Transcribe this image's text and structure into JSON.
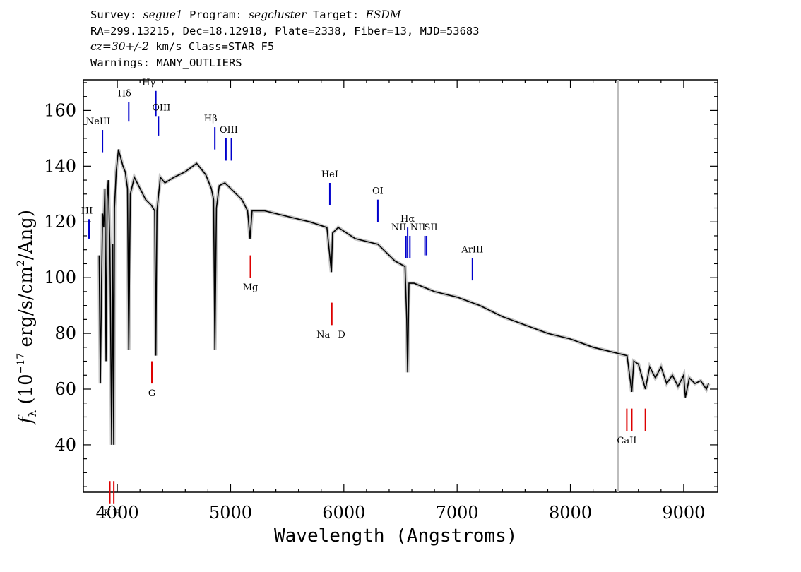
{
  "header": {
    "line1": {
      "survey_label": "Survey: ",
      "survey": "segue1",
      "program_label": " Program: ",
      "program": "segcluster",
      "target_label": " Target: ",
      "target": "ESDM"
    },
    "line2": "RA=299.13215, Dec=18.12918, Plate=2338, Fiber=13, MJD=53683",
    "line3": {
      "cz": "cz=30+/-2",
      "rest": " km/s Class=STAR F5"
    },
    "line4": "Warnings: MANY_OUTLIERS"
  },
  "chart_data": {
    "type": "line",
    "xlabel": "Wavelength (Angstroms)",
    "ylabel": "f_λ (10^-17 erg/s/cm^2/Ang)",
    "ylabel_parts": {
      "f": "f",
      "sub": "λ",
      "a": " (10",
      "exp": "−17",
      "b": " erg/s/cm",
      "exp2": "2",
      "c": "/Ang)"
    },
    "xlim": [
      3700,
      9300
    ],
    "ylim": [
      23,
      171
    ],
    "x_ticks": [
      4000,
      5000,
      6000,
      7000,
      8000,
      9000
    ],
    "y_ticks": [
      40,
      60,
      80,
      100,
      120,
      140,
      160
    ],
    "grey_vline_x": 8420,
    "series": [
      {
        "color": "#000000",
        "x": [
          3840,
          3850,
          3860,
          3870,
          3880,
          3890,
          3900,
          3910,
          3920,
          3935,
          3950,
          3960,
          3968,
          3975,
          3990,
          4010,
          4030,
          4050,
          4070,
          4090,
          4101,
          4115,
          4150,
          4200,
          4250,
          4300,
          4330,
          4340,
          4350,
          4380,
          4420,
          4500,
          4600,
          4700,
          4780,
          4830,
          4850,
          4861,
          4875,
          4900,
          4950,
          5000,
          5100,
          5150,
          5172,
          5190,
          5300,
          5500,
          5700,
          5850,
          5890,
          5900,
          5950,
          6100,
          6300,
          6450,
          6540,
          6555,
          6563,
          6575,
          6620,
          6800,
          7000,
          7200,
          7400,
          7600,
          7800,
          8000,
          8200,
          8400,
          8500,
          8542,
          8560,
          8600,
          8662,
          8700,
          8750,
          8800,
          8850,
          8900,
          8950,
          9000,
          9015,
          9050,
          9100,
          9150,
          9200,
          9220
        ],
        "y": [
          108,
          62,
          97,
          123,
          118,
          132,
          70,
          128,
          135,
          110,
          40,
          112,
          40,
          125,
          138,
          146,
          143,
          140,
          138,
          132,
          74,
          130,
          136,
          132,
          128,
          126,
          124,
          72,
          124,
          136,
          134,
          136,
          138,
          141,
          137,
          132,
          128,
          74,
          125,
          133,
          134,
          132,
          128,
          124,
          114,
          124,
          124,
          122,
          120,
          118,
          102,
          116,
          118,
          114,
          112,
          106,
          104,
          85,
          66,
          98,
          98,
          95,
          93,
          90,
          86,
          83,
          80,
          78,
          75,
          73,
          72,
          59,
          70,
          69,
          60,
          68,
          64,
          68,
          62,
          65,
          61,
          65,
          57,
          64,
          62,
          63,
          60,
          62
        ]
      }
    ],
    "line_labels_blue": [
      {
        "label": "NeIII",
        "x": 3869,
        "y_top": 153,
        "y_bottom": 145
      },
      {
        "label": "Hδ",
        "x": 4101,
        "y_top": 163,
        "y_bottom": 156
      },
      {
        "label": "Hγ",
        "x": 4340,
        "y_top": 167,
        "y_bottom": 158
      },
      {
        "label": "OIII",
        "x": 4363,
        "y_top": 158,
        "y_bottom": 151
      },
      {
        "label": "Hβ",
        "x": 4861,
        "y_top": 154,
        "y_bottom": 146
      },
      {
        "label": "OIII",
        "x": 4959,
        "y_top": 150,
        "y_bottom": 142
      },
      {
        "label": "",
        "x": 5007,
        "y_top": 150,
        "y_bottom": 142
      },
      {
        "label": "HeI",
        "x": 5876,
        "y_top": 134,
        "y_bottom": 126
      },
      {
        "label": "OI",
        "x": 6300,
        "y_top": 128,
        "y_bottom": 120
      },
      {
        "label": "NII",
        "x": 6548,
        "y_top": 115,
        "y_bottom": 107
      },
      {
        "label": "Hα",
        "x": 6563,
        "y_top": 118,
        "y_bottom": 107
      },
      {
        "label": "",
        "x": 6583,
        "y_top": 115,
        "y_bottom": 107
      },
      {
        "label": "NII",
        "x": 6716,
        "y_top": 115,
        "y_bottom": 108
      },
      {
        "label": "SII",
        "x": 6731,
        "y_top": 115,
        "y_bottom": 108
      },
      {
        "label": "ArIII",
        "x": 7135,
        "y_top": 107,
        "y_bottom": 99
      },
      {
        "label": "HI",
        "x": 3750,
        "y_top": 121,
        "y_bottom": 114
      }
    ],
    "line_labels_red": [
      {
        "label": "K",
        "x": 3934,
        "y_top": 27,
        "y_bottom": 19
      },
      {
        "label": "H",
        "x": 3969,
        "y_top": 27,
        "y_bottom": 19
      },
      {
        "label": "G",
        "x": 4305,
        "y_top": 70,
        "y_bottom": 62
      },
      {
        "label": "Mg",
        "x": 5175,
        "y_top": 108,
        "y_bottom": 100
      },
      {
        "label": "Na",
        "x": 5893,
        "y_top": 91,
        "y_bottom": 83
      },
      {
        "label": "D",
        "x": 5893,
        "y_top": 91,
        "y_bottom": 83
      },
      {
        "label": "CaII",
        "x": 8498,
        "y_top": 53,
        "y_bottom": 45
      },
      {
        "label": "",
        "x": 8542,
        "y_top": 53,
        "y_bottom": 45
      },
      {
        "label": "",
        "x": 8662,
        "y_top": 53,
        "y_bottom": 45
      }
    ]
  }
}
